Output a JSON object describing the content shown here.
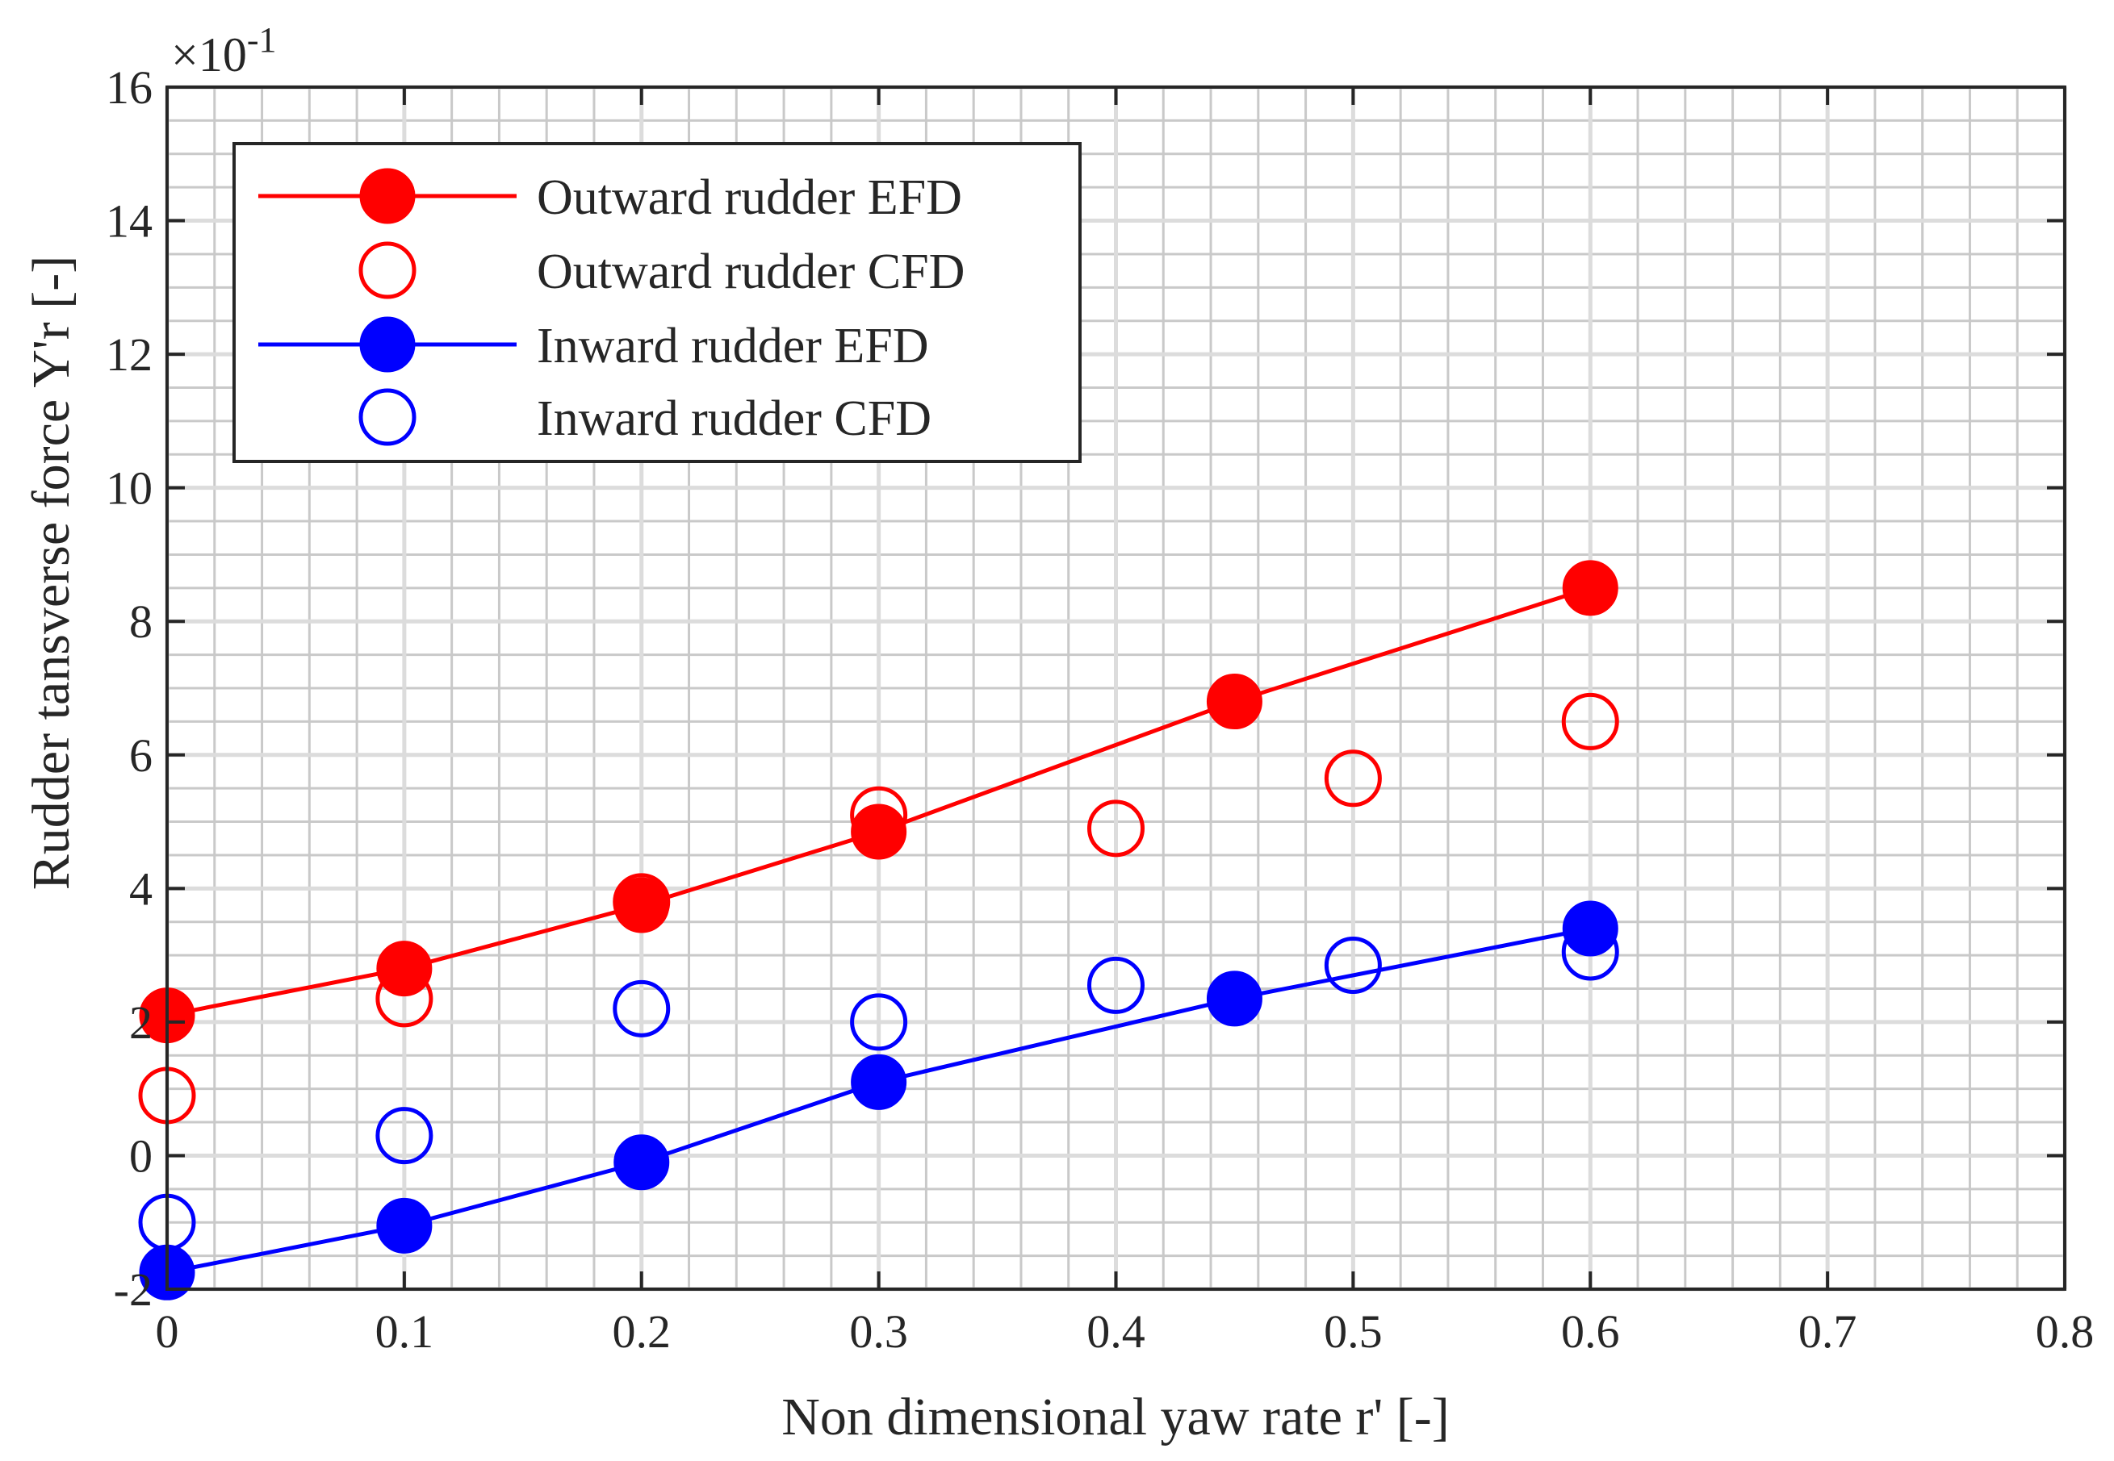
{
  "chart_data": {
    "type": "line",
    "title": "",
    "xlabel": "Non dimensional yaw rate r' [-]",
    "ylabel": "Rudder tansverse force Y'r [-]",
    "y_multiplier": "×10",
    "y_multiplier_exp": "-1",
    "xlim": [
      0,
      0.8
    ],
    "ylim": [
      -2,
      16
    ],
    "x_ticks": [
      0,
      0.1,
      0.2,
      0.3,
      0.4,
      0.5,
      0.6,
      0.7,
      0.8
    ],
    "x_tick_labels": [
      "0",
      "0.1",
      "0.2",
      "0.3",
      "0.4",
      "0.5",
      "0.6",
      "0.7",
      "0.8"
    ],
    "y_ticks": [
      -2,
      0,
      2,
      4,
      6,
      8,
      10,
      12,
      14,
      16
    ],
    "y_tick_labels": [
      "-2",
      "0",
      "2",
      "4",
      "6",
      "8",
      "10",
      "12",
      "14",
      "16"
    ],
    "grid": true,
    "minor_grid": true,
    "legend_position": "top-left",
    "series": [
      {
        "name": "Outward rudder EFD",
        "color": "#ff0000",
        "style": "line-filled-marker",
        "x": [
          0,
          0.1,
          0.2,
          0.3,
          0.45,
          0.6
        ],
        "y": [
          2.1,
          2.8,
          3.75,
          4.85,
          6.8,
          8.5
        ]
      },
      {
        "name": "Outward rudder CFD",
        "color": "#ff0000",
        "style": "open-marker",
        "x": [
          0,
          0.1,
          0.2,
          0.3,
          0.4,
          0.5,
          0.6
        ],
        "y": [
          0.9,
          2.35,
          3.8,
          5.1,
          4.9,
          5.65,
          6.5
        ]
      },
      {
        "name": "Inward rudder EFD",
        "color": "#0000ff",
        "style": "line-filled-marker",
        "x": [
          0,
          0.1,
          0.2,
          0.3,
          0.45,
          0.6
        ],
        "y": [
          -1.75,
          -1.05,
          -0.1,
          1.1,
          2.35,
          3.4
        ]
      },
      {
        "name": "Inward rudder CFD",
        "color": "#0000ff",
        "style": "open-marker",
        "x": [
          0,
          0.1,
          0.2,
          0.3,
          0.4,
          0.5,
          0.6
        ],
        "y": [
          -1.0,
          0.3,
          2.2,
          2.0,
          2.55,
          2.85,
          3.05
        ]
      }
    ]
  }
}
